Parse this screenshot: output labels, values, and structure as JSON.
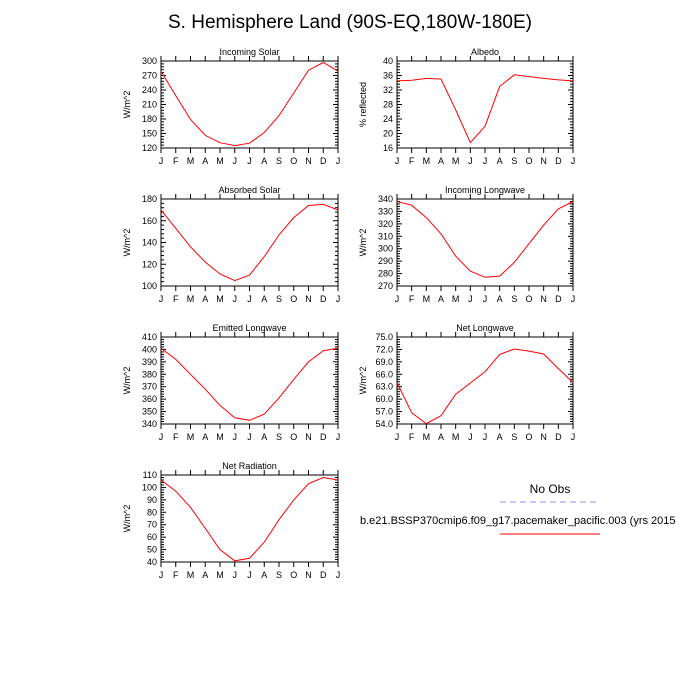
{
  "title": "S. Hemisphere Land (90S-EQ,180W-180E)",
  "legend": {
    "obs_label": "No Obs",
    "obs_color": "#8c8cff",
    "model_label": "b.e21.BSSP370cmip6.f09_g17.pacemaker_pacific.003 (yrs 2015",
    "model_color": "#ff0000"
  },
  "chart_data": [
    {
      "type": "line",
      "title": "Incoming Solar",
      "ylabel": "W/m^2",
      "categories": [
        "J",
        "F",
        "M",
        "A",
        "M",
        "J",
        "J",
        "A",
        "S",
        "O",
        "N",
        "D",
        "J"
      ],
      "ylim": [
        120,
        300
      ],
      "yticks": [
        120,
        150,
        180,
        210,
        240,
        270,
        300
      ],
      "ytick_labels": [
        "120",
        "150",
        "180",
        "210",
        "240",
        "270",
        "300"
      ],
      "series": [
        {
          "name": "model",
          "values": [
            279,
            228,
            179,
            146,
            131,
            125,
            130,
            152,
            187,
            234,
            281,
            297,
            279
          ]
        }
      ]
    },
    {
      "type": "line",
      "title": "Albedo",
      "ylabel": "% reflected",
      "categories": [
        "J",
        "F",
        "M",
        "A",
        "M",
        "J",
        "J",
        "A",
        "S",
        "O",
        "N",
        "D",
        "J"
      ],
      "ylim": [
        16,
        40
      ],
      "yticks": [
        16,
        20,
        24,
        28,
        32,
        36,
        40
      ],
      "ytick_labels": [
        "16",
        "20",
        "24",
        "28",
        "32",
        "36",
        "40"
      ],
      "series": [
        {
          "name": "model",
          "values": [
            34.5,
            34.7,
            35.2,
            35.0,
            26.5,
            17.5,
            22.0,
            33.0,
            36.2,
            35.7,
            35.2,
            34.8,
            34.5
          ]
        }
      ]
    },
    {
      "type": "line",
      "title": "Absorbed Solar",
      "ylabel": "W/m^2",
      "categories": [
        "J",
        "F",
        "M",
        "A",
        "M",
        "J",
        "J",
        "A",
        "S",
        "O",
        "N",
        "D",
        "J"
      ],
      "ylim": [
        100,
        180
      ],
      "yticks": [
        100,
        120,
        140,
        160,
        180
      ],
      "ytick_labels": [
        "100",
        "120",
        "140",
        "160",
        "180"
      ],
      "series": [
        {
          "name": "model",
          "values": [
            170,
            153,
            136,
            122,
            111,
            105,
            110,
            127,
            147,
            163,
            174,
            175,
            170
          ]
        }
      ]
    },
    {
      "type": "line",
      "title": "Incoming Longwave",
      "ylabel": "W/m^2",
      "categories": [
        "J",
        "F",
        "M",
        "A",
        "M",
        "J",
        "J",
        "A",
        "S",
        "O",
        "N",
        "D",
        "J"
      ],
      "ylim": [
        270,
        340
      ],
      "yticks": [
        270,
        280,
        290,
        300,
        310,
        320,
        330,
        340
      ],
      "ytick_labels": [
        "270",
        "280",
        "290",
        "300",
        "310",
        "320",
        "330",
        "340"
      ],
      "series": [
        {
          "name": "model",
          "values": [
            338,
            335,
            325,
            312,
            294,
            282,
            277,
            278,
            289,
            304,
            319,
            332,
            338
          ]
        }
      ]
    },
    {
      "type": "line",
      "title": "Emitted Longwave",
      "ylabel": "W/m^2",
      "categories": [
        "J",
        "F",
        "M",
        "A",
        "M",
        "J",
        "J",
        "A",
        "S",
        "O",
        "N",
        "D",
        "J"
      ],
      "ylim": [
        340,
        410
      ],
      "yticks": [
        340,
        350,
        360,
        370,
        380,
        390,
        400,
        410
      ],
      "ytick_labels": [
        "340",
        "350",
        "360",
        "370",
        "380",
        "390",
        "400",
        "410"
      ],
      "series": [
        {
          "name": "model",
          "values": [
            401,
            392,
            380,
            368,
            355,
            345,
            343,
            348,
            361,
            376,
            390,
            399,
            401
          ]
        }
      ]
    },
    {
      "type": "line",
      "title": "Net Longwave",
      "ylabel": "W/m^2",
      "categories": [
        "J",
        "F",
        "M",
        "A",
        "M",
        "J",
        "J",
        "A",
        "S",
        "O",
        "N",
        "D",
        "J"
      ],
      "ylim": [
        54,
        75
      ],
      "yticks": [
        54,
        57,
        60,
        63,
        66,
        69,
        72,
        75
      ],
      "ytick_labels": [
        "54.0",
        "57.0",
        "60.0",
        "63.0",
        "66.0",
        "69.0",
        "72.0",
        "75.0"
      ],
      "series": [
        {
          "name": "model",
          "values": [
            64.0,
            56.7,
            54.1,
            56.0,
            61.2,
            63.9,
            66.6,
            70.8,
            72.1,
            71.6,
            70.9,
            67.4,
            64.0
          ]
        }
      ]
    },
    {
      "type": "line",
      "title": "Net Radiation",
      "ylabel": "W/m^2",
      "categories": [
        "J",
        "F",
        "M",
        "A",
        "M",
        "J",
        "J",
        "A",
        "S",
        "O",
        "N",
        "D",
        "J"
      ],
      "ylim": [
        40,
        110
      ],
      "yticks": [
        40,
        50,
        60,
        70,
        80,
        90,
        100,
        110
      ],
      "ytick_labels": [
        "40",
        "50",
        "60",
        "70",
        "80",
        "90",
        "100",
        "110"
      ],
      "series": [
        {
          "name": "model",
          "values": [
            106,
            97,
            84,
            67,
            50,
            41,
            43,
            56,
            74,
            90,
            103,
            108,
            106
          ]
        }
      ]
    }
  ]
}
